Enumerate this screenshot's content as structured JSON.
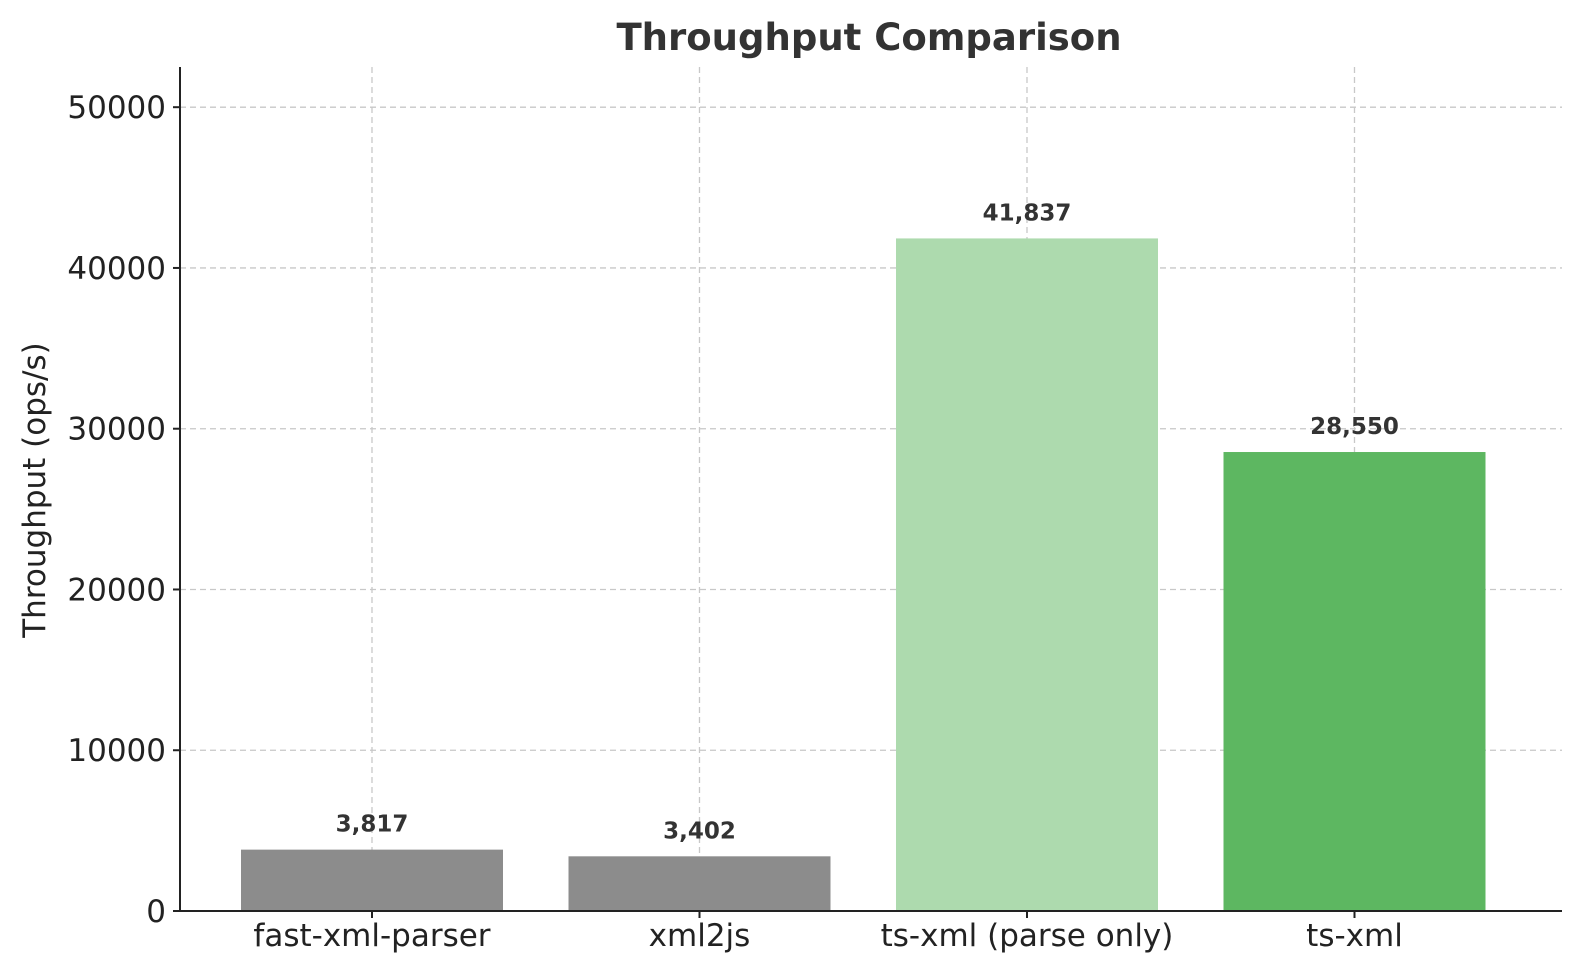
{
  "chart_data": {
    "type": "bar",
    "title": "Throughput Comparison",
    "xlabel": "",
    "ylabel": "Throughput (ops/s)",
    "categories": [
      "fast-xml-parser",
      "xml2js",
      "ts-xml (parse only)",
      "ts-xml"
    ],
    "values": [
      3817,
      3402,
      41837,
      28550
    ],
    "data_labels": [
      "3,817",
      "3,402",
      "41,837",
      "28,550"
    ],
    "colors": [
      "#8c8c8c",
      "#8c8c8c",
      "#addaae",
      "#5db761"
    ],
    "ylim": [
      0,
      52500
    ],
    "yticks": [
      0,
      10000,
      20000,
      30000,
      40000,
      50000
    ],
    "ytick_labels": [
      "0",
      "10000",
      "20000",
      "30000",
      "40000",
      "50000"
    ],
    "grid": true
  }
}
